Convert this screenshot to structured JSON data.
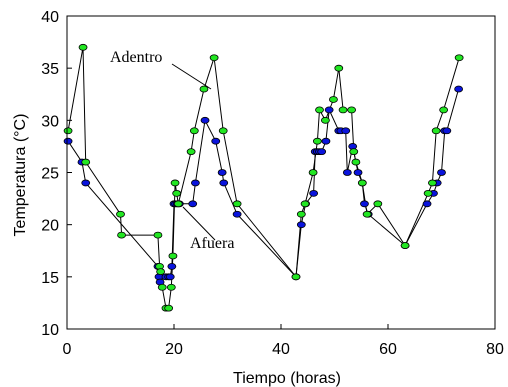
{
  "chart_data": {
    "type": "line",
    "title": "",
    "xlabel": "Tiempo (horas)",
    "ylabel": "Temperatura (°C)",
    "xlim": [
      0,
      80
    ],
    "ylim": [
      10,
      40
    ],
    "xticks": [
      0,
      20,
      40,
      60,
      80
    ],
    "yticks": [
      10,
      15,
      20,
      25,
      30,
      35,
      40
    ],
    "grid": false,
    "legend": "none",
    "annotations": [
      {
        "text": "Adentro",
        "series": "Adentro"
      },
      {
        "text": "Afuera",
        "series": "Afuera"
      }
    ],
    "series": [
      {
        "name": "Afuera",
        "color": "#0a14dc",
        "x": [
          0.2,
          2.8,
          3.5,
          17.0,
          17.2,
          17.4,
          18.5,
          19.0,
          19.3,
          19.6,
          20.0,
          20.3,
          20.6,
          21.0,
          23.5,
          24.0,
          25.8,
          27.8,
          29.0,
          29.3,
          31.8,
          42.8,
          43.8,
          44.6,
          46.1,
          46.4,
          46.8,
          47.2,
          47.6,
          48.4,
          49.0,
          50.8,
          51.2,
          52.1,
          52.4,
          53.4,
          54.4,
          55.2,
          55.6,
          56.3,
          63.2,
          67.3,
          68.5,
          69.2,
          70.0,
          70.6,
          71.0,
          73.2
        ],
        "y": [
          28,
          26,
          24,
          16,
          15,
          14.5,
          15,
          15,
          15,
          16,
          22,
          22,
          22,
          22,
          22,
          24,
          30,
          28,
          25,
          24,
          21,
          15,
          20,
          22,
          23,
          27,
          27,
          27,
          27,
          28,
          31,
          29,
          29,
          29,
          25,
          27.5,
          25,
          24,
          22,
          21,
          18,
          22,
          23,
          24,
          25,
          29,
          29,
          33
        ]
      },
      {
        "name": "Adentro",
        "color": "#22e622",
        "x": [
          0.2,
          3.0,
          3.5,
          10.0,
          10.2,
          17.0,
          17.3,
          17.5,
          17.8,
          18.5,
          19.0,
          19.5,
          19.8,
          20.2,
          20.5,
          20.8,
          23.2,
          23.8,
          25.6,
          27.5,
          29.2,
          31.8,
          42.8,
          43.8,
          44.5,
          46.0,
          46.8,
          47.2,
          48.3,
          49.8,
          50.8,
          51.6,
          53.2,
          53.6,
          54.0,
          55.2,
          56.1,
          58.1,
          63.2,
          67.5,
          68.3,
          69.0,
          70.4,
          73.3
        ],
        "y": [
          29,
          37,
          26,
          21,
          19,
          19,
          16,
          15.5,
          14,
          12,
          12,
          14,
          17,
          24,
          23,
          22,
          27,
          29,
          33,
          36,
          29,
          22,
          15,
          21,
          22,
          25,
          28,
          31,
          30,
          32,
          35,
          31,
          31,
          27,
          26,
          24,
          21,
          22,
          18,
          23,
          24,
          29,
          31,
          36
        ]
      }
    ]
  }
}
